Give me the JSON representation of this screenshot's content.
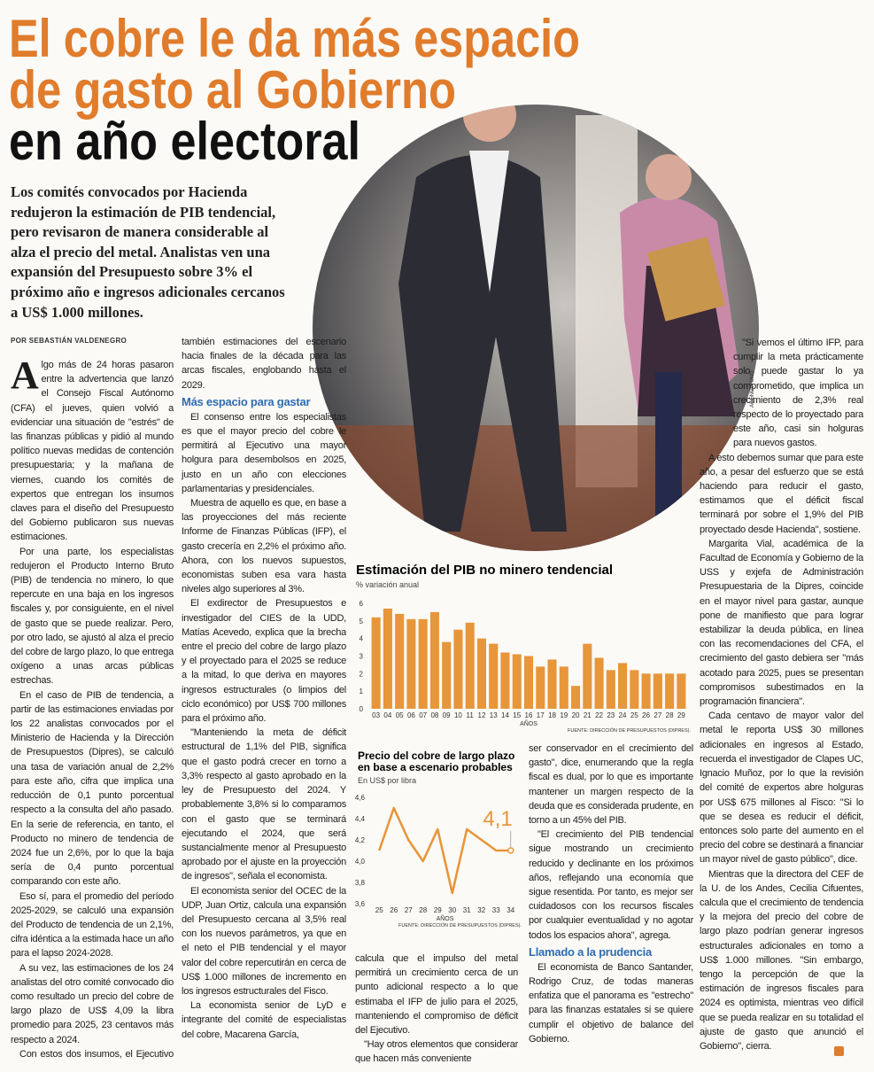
{
  "headline": [
    "El cobre le da más espacio",
    "de gasto al Gobierno",
    "en año electoral"
  ],
  "lede": "Los comités convocados por Hacienda redujeron la estimación de PIB tendencial, pero revisaron de manera considerable al alza el precio del metal. Analistas ven una expansión del Presupuesto sobre 3% el próximo año e ingresos adicionales cercanos a US$ 1.000 millones.",
  "byline": "POR SEBASTIÁN VALDENEGRO",
  "photo_credit": "AGENCIA UNO",
  "subheads": [
    "Más espacio para gastar",
    "Llamado a la prudencia"
  ],
  "paragraphs": [
    "Algo más de 24 horas pasaron entre la advertencia que lanzó el Consejo Fiscal Autónomo (CFA) el jueves, quien volvió a evidenciar una situación de \"estrés\" de las finanzas públicas y pidió al mundo político nuevas medidas de contención presupuestaria; y la mañana de viernes, cuando los comités de expertos que entregan los insumos claves para el diseño del Presupuesto del Gobierno publicaron sus nuevas estimaciones.",
    "Por una parte, los especialistas redujeron el Producto Interno Bruto (PIB) de tendencia no minero, lo que repercute en una baja en los ingresos fiscales y, por consiguiente, en el nivel de gasto que se puede realizar. Pero, por otro lado, se ajustó al alza el precio del cobre de largo plazo, lo que entrega oxígeno a unas arcas públicas estrechas.",
    "En el caso de PIB de tendencia, a partir de las estimaciones enviadas por los 22 analistas convocados por el Ministerio de Hacienda y la Dirección de Presupuestos (Dipres), se calculó una tasa de variación anual de 2,2% para este año, cifra que implica una reducción de 0,1 punto porcentual respecto a la consulta del año pasado. En la serie de referencia, en tanto, el Producto no minero de tendencia de 2024 fue un 2,6%, por lo que la baja sería de 0,4 punto porcentual comparando con este año.",
    "Eso sí, para el promedio del período 2025-2029, se calculó una expansión del Producto de tendencia de un 2,1%, cifra idéntica a la estimada hace un año para el lapso 2024-2028.",
    "A su vez, las estimaciones de los 24 analistas del otro comité convocado dio como resultado un precio del cobre de largo plazo de US$ 4,09 la libra promedio para 2025, 23 centavos más respecto a 2024.",
    "Con estos dos insumos, el Ejecutivo podrá calcular el espacio de crecimiento del gasto público tanto para este año como para el mediano plazo, ya que el Presupuesto considera",
    "también estimaciones del escenario hacia finales de la década para las arcas fiscales, englobando hasta el 2029.",
    "El consenso entre los especialistas es que el mayor precio del cobre le permitirá al Ejecutivo una mayor holgura para desembolsos en 2025, justo en un año con elecciones parlamentarias y presidenciales.",
    "Muestra de aquello es que, en base a las proyecciones del más reciente Informe de Finanzas Públicas (IFP), el gasto crecería en 2,2% el próximo año. Ahora, con los nuevos supuestos, economistas suben esa vara hasta niveles algo superiores al 3%.",
    "El exdirector de Presupuestos e investigador del CIES de la UDD, Matías Acevedo, explica que la brecha entre el precio del cobre de largo plazo y el proyectado para el 2025 se reduce a la mitad, lo que deriva en mayores ingresos estructurales (o limpios del ciclo económico) por US$ 700 millones para el próximo año.",
    "\"Manteniendo la meta de déficit estructural de 1,1% del PIB, significa que el gasto podrá crecer en torno a 3,3% respecto al gasto aprobado en la ley de Presupuesto del 2024. Y probablemente 3,8% si lo comparamos con el gasto que se terminará ejecutando el 2024, que será sustancialmente menor al Presupuesto aprobado por el ajuste en la proyección de ingresos\", señala el economista.",
    "El economista senior del OCEC de la UDP, Juan Ortiz, calcula una expansión del Presupuesto cercana al 3,5% real con los nuevos parámetros, ya que en el neto el PIB tendencial y el mayor valor del cobre repercutirán en cerca de US$ 1.000 millones de incremento en los ingresos estructurales del Fisco.",
    "La economista senior de LyD e integrante del comité de especialistas del cobre, Macarena García,",
    "calcula que el impulso del metal permitirá un crecimiento cerca de un punto adicional respecto a lo que estimaba el IFP de julio para el 2025, manteniendo el compromiso de déficit del Ejecutivo.",
    "\"Hay otros elementos que considerar que hacen más conveniente",
    "ser conservador en el crecimiento del gasto\", dice, enumerando que la regla fiscal es dual, por lo que es importante mantener un margen respecto de la deuda que es considerada prudente, en torno a un 45% del PIB.",
    "\"El crecimiento del PIB tendencial sigue mostrando un crecimiento reducido y declinante en los próximos años, reflejando una economía que sigue resentida. Por tanto, es mejor ser cuidadosos con los recursos fiscales por cualquier eventualidad y no agotar todos los espacios ahora\", agrega.",
    "El economista de Banco Santander, Rodrigo Cruz, de todas maneras enfatiza que el panorama es \"estrecho\" para las finanzas estatales si se quiere cumplir el objetivo de balance del Gobierno.",
    "\"Si vemos el último IFP, para cumplir la meta prácticamente solo puede gastar lo ya comprometido, que implica un crecimiento de 2,3% real respecto de lo proyectado para este año, casi sin holguras para nuevos gastos.",
    "A esto debemos sumar que para este año, a pesar del esfuerzo que se está haciendo para reducir el gasto, estimamos que el déficit fiscal terminará por sobre el 1,9% del PIB proyectado desde Hacienda\", sostiene.",
    "Margarita Vial, académica de la Facultad de Economía y Gobierno de la USS y exjefa de Administración Presupuestaria de la Dipres, coincide en el mayor nivel para gastar, aunque pone de manifiesto que para lograr estabilizar la deuda pública, en línea con las recomendaciones del CFA, el crecimiento del gasto debiera ser \"más acotado para 2025, pues se presentan compromisos subestimados en la programación financiera\".",
    "Cada centavo de mayor valor del metal le reporta US$ 30 millones adicionales en ingresos al Estado, recuerda el investigador de Clapes UC, Ignacio Muñoz, por lo que la revisión del comité de expertos abre holguras por US$ 675 millones al Fisco: \"Si lo que se desea es reducir el déficit, entonces solo parte del aumento en el precio del cobre se destinará a financiar un mayor nivel de gasto público\", dice.",
    "Mientras que la directora del CEF de la U. de los Andes, Cecilia Cifuentes, calcula que el crecimiento de tendencia y la mejora del precio del cobre de largo plazo podrían generar ingresos estructurales adicionales en torno a US$ 1.000 millones. \"Sin embargo, tengo la percepción de que la estimación de ingresos fiscales para 2024 es optimista, mientras veo difícil que se pueda realizar en su totalidad el ajuste de gasto que anunció el Gobierno\", cierra."
  ],
  "chart_data": [
    {
      "type": "bar",
      "title": "Estimación del PIB no minero tendencial",
      "subtitle": "% variación anual",
      "x_label": "AÑOS",
      "source": "FUENTE: DIRECCIÓN DE PRESUPUESTOS (DIPRES).",
      "categories": [
        "03",
        "04",
        "05",
        "06",
        "07",
        "08",
        "09",
        "10",
        "11",
        "12",
        "13",
        "14",
        "15",
        "16",
        "17",
        "18",
        "19",
        "20",
        "21",
        "22",
        "23",
        "24",
        "25",
        "26",
        "27",
        "28",
        "29"
      ],
      "values": [
        5.2,
        5.7,
        5.4,
        5.1,
        5.1,
        5.5,
        3.8,
        4.5,
        4.9,
        4.0,
        3.7,
        3.2,
        3.1,
        3.0,
        2.4,
        2.8,
        2.4,
        1.3,
        3.7,
        2.9,
        2.2,
        2.6,
        2.2,
        2.0,
        2.0,
        2.0,
        2.0
      ],
      "color": "#e8963a",
      "ylim": [
        0,
        6
      ],
      "yticks": [
        0,
        1,
        2,
        3,
        4,
        5,
        6
      ],
      "grid": false
    },
    {
      "type": "line",
      "title": [
        "Precio del cobre de largo plazo",
        "en base a escenario probables"
      ],
      "subtitle": "En US$ por libra",
      "x_label": "AÑOS",
      "source": "FUENTE: DIRECCIÓN DE PRESUPUESTOS (DIPRES).",
      "categories": [
        "25",
        "26",
        "27",
        "28",
        "29",
        "30",
        "31",
        "32",
        "33",
        "34"
      ],
      "values": [
        4.1,
        4.5,
        4.2,
        4.0,
        4.3,
        3.7,
        4.3,
        4.2,
        4.1,
        4.1
      ],
      "value_labels": [
        null,
        null,
        null,
        null,
        null,
        null,
        null,
        null,
        null,
        "4,1"
      ],
      "color": "#e8963a",
      "ylim": [
        3.6,
        4.6
      ],
      "yticks": [
        {
          "value": 3.6,
          "label": "3,6"
        },
        {
          "value": 3.8,
          "label": "3,8"
        },
        {
          "value": 4.0,
          "label": "4,0"
        },
        {
          "value": 4.2,
          "label": "4,2"
        },
        {
          "value": 4.4,
          "label": "4,4"
        },
        {
          "value": 4.6,
          "label": "4,6"
        }
      ],
      "grid": false
    }
  ]
}
